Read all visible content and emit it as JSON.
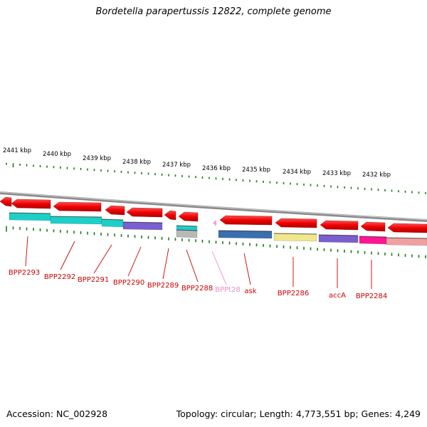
{
  "title": "Bordetella parapertussis 12822, complete genome",
  "footer": {
    "accession": "Accession: NC_002928",
    "topology": "Topology: circular; Length: 4,773,551 bp; Genes: 4,249"
  },
  "scale_labels": [
    {
      "text": "2441 kbp",
      "position_kbp": 2441
    },
    {
      "text": "2440 kbp",
      "position_kbp": 2440
    },
    {
      "text": "2439 kbp",
      "position_kbp": 2439
    },
    {
      "text": "2438 kbp",
      "position_kbp": 2438
    },
    {
      "text": "2437 kbp",
      "position_kbp": 2437
    },
    {
      "text": "2436 kbp",
      "position_kbp": 2436
    },
    {
      "text": "2435 kbp",
      "position_kbp": 2435
    },
    {
      "text": "2434 kbp",
      "position_kbp": 2434
    },
    {
      "text": "2433 kbp",
      "position_kbp": 2433
    },
    {
      "text": "2432 kbp",
      "position_kbp": 2432
    }
  ],
  "gene_labels": [
    {
      "text": "BPP2293",
      "color": "#cc0000"
    },
    {
      "text": "BPP2292",
      "color": "#cc0000"
    },
    {
      "text": "BPP2291",
      "color": "#cc0000"
    },
    {
      "text": "BPP2290",
      "color": "#cc0000"
    },
    {
      "text": "BPP2289",
      "color": "#cc0000"
    },
    {
      "text": "BPP2288",
      "color": "#cc0000"
    },
    {
      "text": "BPPt28",
      "color": "#f08cc8"
    },
    {
      "text": "ask",
      "color": "#cc0000"
    },
    {
      "text": "BPP2286",
      "color": "#cc0000"
    },
    {
      "text": "accA",
      "color": "#cc0000"
    },
    {
      "text": "BPP2284",
      "color": "#cc0000"
    }
  ],
  "colors": {
    "backbone": "#888888",
    "gene": "#ee0000",
    "tick": "#1a7a1a",
    "cog_teal": "#1ecfc8",
    "cog_purple": "#7a5fd0",
    "cog_blue": "#3a6fb0",
    "cog_yellow": "#f0e68c",
    "cog_magenta": "#ff1493",
    "cog_pink": "#f0a0a0",
    "cog_grey": "#b8b8b8"
  }
}
